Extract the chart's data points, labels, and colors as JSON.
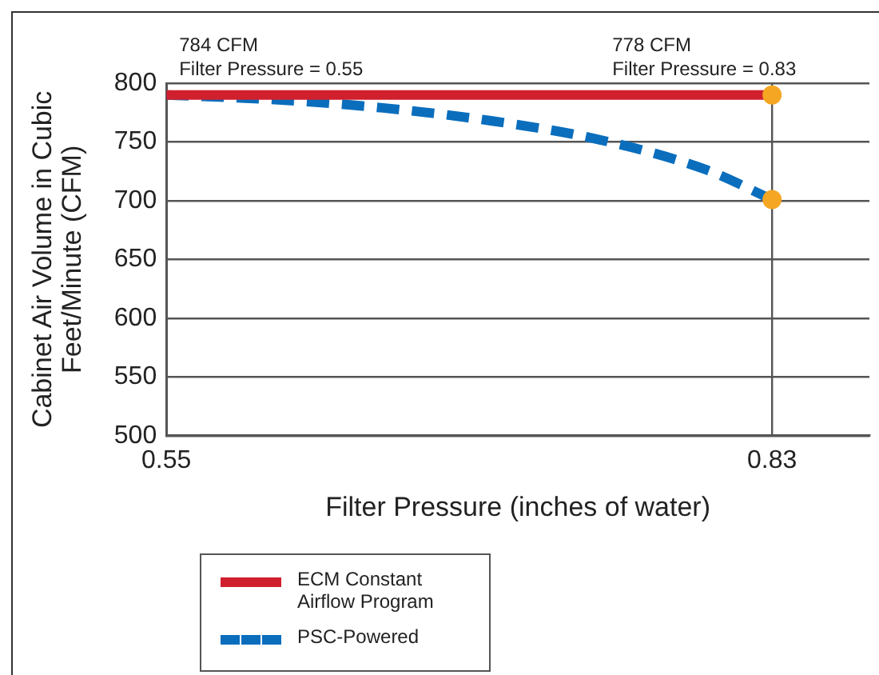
{
  "chart_data": {
    "type": "line",
    "xlabel": "Filter Pressure (inches of water)",
    "ylabel": "Cabinet Air Volume in Cubic Feet/Minute (CFM)",
    "annotations": [
      "784 CFM\nFilter Pressure = 0.55",
      "778 CFM\nFilter Pressure = 0.83"
    ],
    "xlim": [
      0.55,
      0.875
    ],
    "xticks": [
      0.55,
      0.83
    ],
    "ylim": [
      500,
      800
    ],
    "yticks": [
      500,
      550,
      600,
      650,
      700,
      750,
      800
    ],
    "grid": true,
    "legend": "bottom left",
    "series": [
      {
        "name": "ECM Constant Airflow Program",
        "color": "#d0202e",
        "x": [
          0.55,
          0.83
        ],
        "values": [
          790,
          790
        ]
      },
      {
        "name": "PSC-Powered",
        "color": "#0a6ebd",
        "line_style": "dashed",
        "x": [
          0.55,
          0.6,
          0.65,
          0.7,
          0.75,
          0.8,
          0.83
        ],
        "values": [
          790,
          786,
          779,
          768,
          752,
          726,
          701
        ]
      },
      {
        "type": "scatter",
        "color": "#f5a623",
        "marker": "circle",
        "x": [
          0.83,
          0.83
        ],
        "values": [
          790,
          701
        ]
      }
    ]
  }
}
